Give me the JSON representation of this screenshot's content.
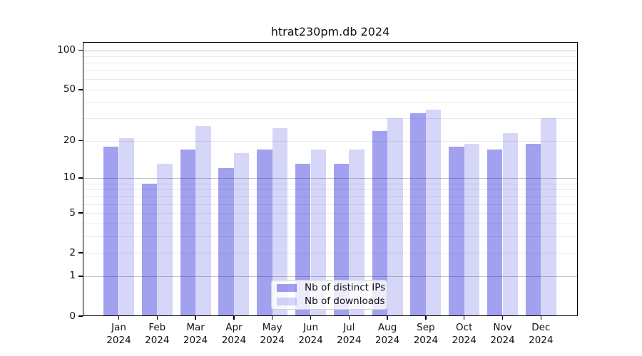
{
  "title": "htrat230pm.db 2024",
  "chart_data": {
    "type": "bar",
    "title": "htrat230pm.db 2024",
    "categories": [
      "Jan",
      "Feb",
      "Mar",
      "Apr",
      "May",
      "Jun",
      "Jul",
      "Aug",
      "Sep",
      "Oct",
      "Nov",
      "Dec"
    ],
    "category_year": "2024",
    "series": [
      {
        "name": "Nb of distinct IPs",
        "color": "rgba(0,0,215,0.37)",
        "color_hex": "#a1a1f0",
        "values": [
          18,
          9,
          17,
          12,
          17,
          13,
          13,
          24,
          33,
          18,
          17,
          19
        ]
      },
      {
        "name": "Nb of downloads",
        "color": "rgba(0,0,215,0.16)",
        "color_hex": "#d6d6f9",
        "values": [
          21,
          13,
          26,
          16,
          25,
          17,
          17,
          30,
          35,
          19,
          23,
          30
        ]
      }
    ],
    "xlabel": "",
    "ylabel": "",
    "yscale": "log10(1+y)",
    "ylim": [
      0,
      116
    ],
    "yticks": [
      0,
      1,
      2,
      5,
      10,
      20,
      50,
      100
    ],
    "gridlines_major": [
      1,
      10,
      100
    ],
    "gridlines_minor": [
      2,
      3,
      4,
      5,
      6,
      7,
      8,
      9,
      20,
      30,
      40,
      50,
      60,
      70,
      80,
      90
    ],
    "grid": true,
    "legend_position": "lower center"
  },
  "legend": {
    "items": [
      "Nb of distinct IPs",
      "Nb of downloads"
    ]
  },
  "colors": {
    "background": "#ffffff",
    "axis": "#000000",
    "text": "#111111",
    "grid_major": "#c3c3c3",
    "grid_minor": "#eaeaea",
    "legend_border": "#d2d2d2"
  }
}
